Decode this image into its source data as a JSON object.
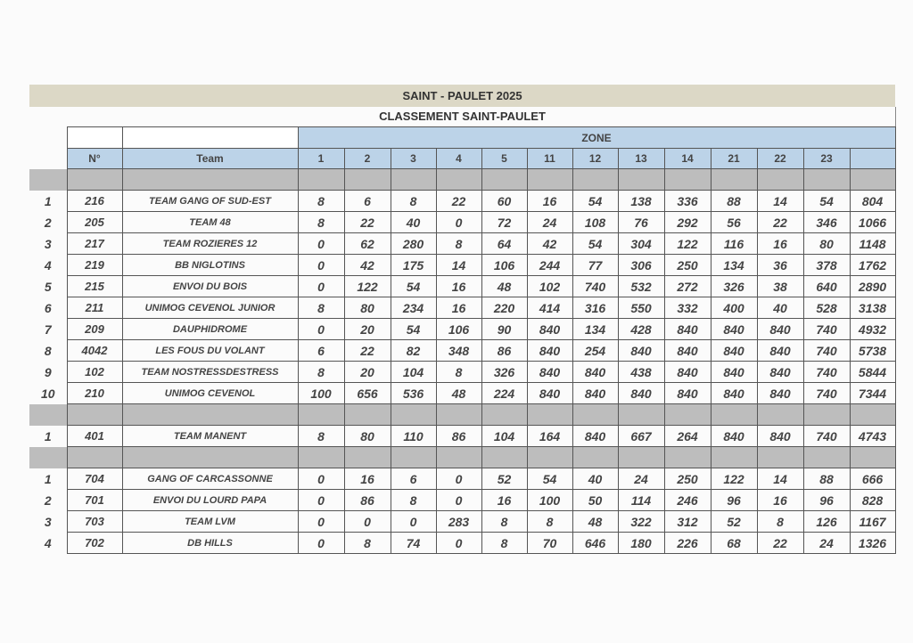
{
  "title": "SAINT - PAULET 2025",
  "subtitle": "CLASSEMENT SAINT-PAULET",
  "zone_label": "ZONE",
  "headers": {
    "number": "N°",
    "team": "Team",
    "zones": [
      "1",
      "2",
      "3",
      "4",
      "5",
      "11",
      "12",
      "13",
      "14",
      "21",
      "22",
      "23"
    ],
    "total": ""
  },
  "colors": {
    "title_band": "#dcd8c6",
    "header": "#bcd3e8",
    "separator": "#bdbdbd"
  },
  "groups": [
    {
      "rows": [
        {
          "rank": "1",
          "number": "216",
          "team": "TEAM GANG OF SUD-EST",
          "values": [
            "8",
            "6",
            "8",
            "22",
            "60",
            "16",
            "54",
            "138",
            "336",
            "88",
            "14",
            "54"
          ],
          "total": "804"
        },
        {
          "rank": "2",
          "number": "205",
          "team": "TEAM 48",
          "values": [
            "8",
            "22",
            "40",
            "0",
            "72",
            "24",
            "108",
            "76",
            "292",
            "56",
            "22",
            "346"
          ],
          "total": "1066"
        },
        {
          "rank": "3",
          "number": "217",
          "team": "TEAM ROZIERES 12",
          "values": [
            "0",
            "62",
            "280",
            "8",
            "64",
            "42",
            "54",
            "304",
            "122",
            "116",
            "16",
            "80"
          ],
          "total": "1148"
        },
        {
          "rank": "4",
          "number": "219",
          "team": "BB NIGLOTINS",
          "values": [
            "0",
            "42",
            "175",
            "14",
            "106",
            "244",
            "77",
            "306",
            "250",
            "134",
            "36",
            "378"
          ],
          "total": "1762"
        },
        {
          "rank": "5",
          "number": "215",
          "team": "ENVOI DU BOIS",
          "values": [
            "0",
            "122",
            "54",
            "16",
            "48",
            "102",
            "740",
            "532",
            "272",
            "326",
            "38",
            "640"
          ],
          "total": "2890"
        },
        {
          "rank": "6",
          "number": "211",
          "team": "UNIMOG CEVENOL JUNIOR",
          "values": [
            "8",
            "80",
            "234",
            "16",
            "220",
            "414",
            "316",
            "550",
            "332",
            "400",
            "40",
            "528"
          ],
          "total": "3138"
        },
        {
          "rank": "7",
          "number": "209",
          "team": "DAUPHIDROME",
          "values": [
            "0",
            "20",
            "54",
            "106",
            "90",
            "840",
            "134",
            "428",
            "840",
            "840",
            "840",
            "740"
          ],
          "total": "4932"
        },
        {
          "rank": "8",
          "number": "4042",
          "team": "LES FOUS DU VOLANT",
          "values": [
            "6",
            "22",
            "82",
            "348",
            "86",
            "840",
            "254",
            "840",
            "840",
            "840",
            "840",
            "740"
          ],
          "total": "5738"
        },
        {
          "rank": "9",
          "number": "102",
          "team": "TEAM NOSTRESSDESTRESS",
          "values": [
            "8",
            "20",
            "104",
            "8",
            "326",
            "840",
            "840",
            "438",
            "840",
            "840",
            "840",
            "740"
          ],
          "total": "5844"
        },
        {
          "rank": "10",
          "number": "210",
          "team": "UNIMOG CEVENOL",
          "values": [
            "100",
            "656",
            "536",
            "48",
            "224",
            "840",
            "840",
            "840",
            "840",
            "840",
            "840",
            "740"
          ],
          "total": "7344"
        }
      ]
    },
    {
      "rows": [
        {
          "rank": "1",
          "number": "401",
          "team": "TEAM MANENT",
          "values": [
            "8",
            "80",
            "110",
            "86",
            "104",
            "164",
            "840",
            "667",
            "264",
            "840",
            "840",
            "740"
          ],
          "total": "4743"
        }
      ]
    },
    {
      "rows": [
        {
          "rank": "1",
          "number": "704",
          "team": "GANG OF CARCASSONNE",
          "values": [
            "0",
            "16",
            "6",
            "0",
            "52",
            "54",
            "40",
            "24",
            "250",
            "122",
            "14",
            "88"
          ],
          "total": "666"
        },
        {
          "rank": "2",
          "number": "701",
          "team": "ENVOI DU LOURD PAPA",
          "values": [
            "0",
            "86",
            "8",
            "0",
            "16",
            "100",
            "50",
            "114",
            "246",
            "96",
            "16",
            "96"
          ],
          "total": "828"
        },
        {
          "rank": "3",
          "number": "703",
          "team": "TEAM LVM",
          "values": [
            "0",
            "0",
            "0",
            "283",
            "8",
            "8",
            "48",
            "322",
            "312",
            "52",
            "8",
            "126"
          ],
          "total": "1167"
        },
        {
          "rank": "4",
          "number": "702",
          "team": "DB HILLS",
          "values": [
            "0",
            "8",
            "74",
            "0",
            "8",
            "70",
            "646",
            "180",
            "226",
            "68",
            "22",
            "24"
          ],
          "total": "1326"
        }
      ]
    }
  ]
}
